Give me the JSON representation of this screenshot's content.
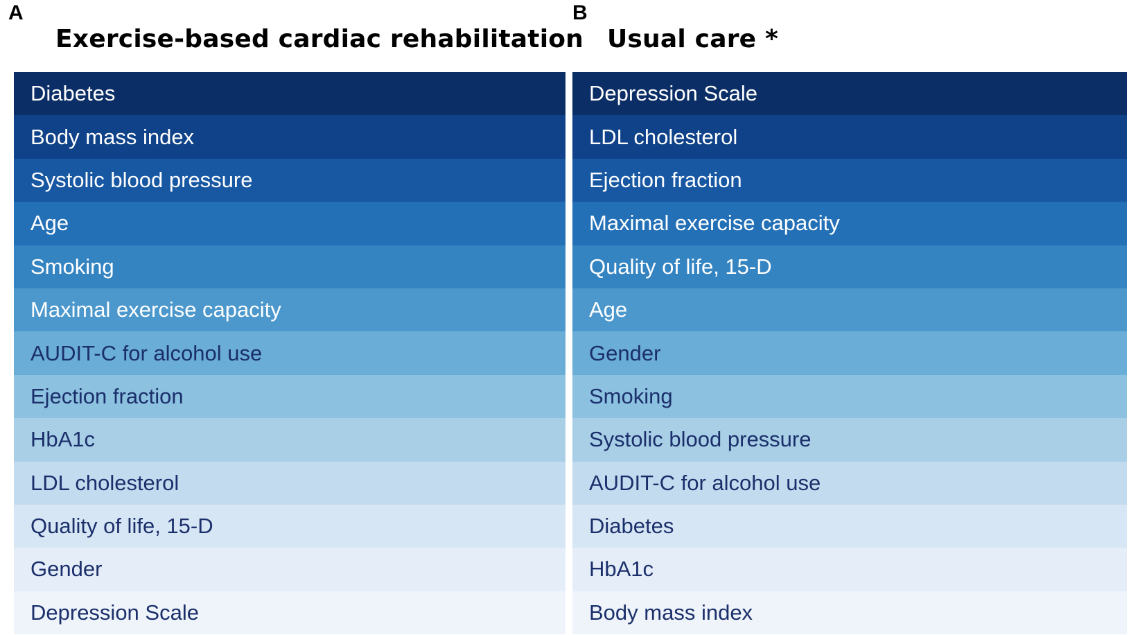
{
  "figure": {
    "panels": [
      {
        "letter": "A",
        "title": "Exercise-based cardiac rehabilitation",
        "items": [
          "Diabetes",
          "Body mass index",
          "Systolic blood pressure",
          "Age",
          "Smoking",
          "Maximal exercise capacity",
          "AUDIT-C for alcohol use",
          "Ejection fraction",
          "HbA1c",
          "LDL cholesterol",
          "Quality of life, 15-D",
          "Gender",
          "Depression Scale"
        ]
      },
      {
        "letter": "B",
        "title": "Usual care *",
        "items": [
          "Depression Scale",
          "LDL cholesterol",
          "Ejection fraction",
          "Maximal exercise capacity",
          "Quality of life, 15-D",
          "Age",
          "Gender",
          "Smoking",
          "Systolic blood pressure",
          "AUDIT-C for alcohol use",
          "Diabetes",
          "HbA1c",
          "Body mass index"
        ]
      }
    ],
    "row_colors": [
      "#0b2e66",
      "#0f4288",
      "#1858a3",
      "#2370b6",
      "#3584c2",
      "#4c98cc",
      "#6aadd6",
      "#8cc1e0",
      "#a8cfe6",
      "#c3dbef",
      "#d7e6f4",
      "#e5eef8",
      "#eef4fa"
    ],
    "text_colors": [
      "#ffffff",
      "#ffffff",
      "#ffffff",
      "#ffffff",
      "#ffffff",
      "#ffffff",
      "#1b2f6b",
      "#1b2f6b",
      "#1b2f6b",
      "#1b2f6b",
      "#1b2f6b",
      "#1b2f6b",
      "#1b2f6b"
    ]
  }
}
